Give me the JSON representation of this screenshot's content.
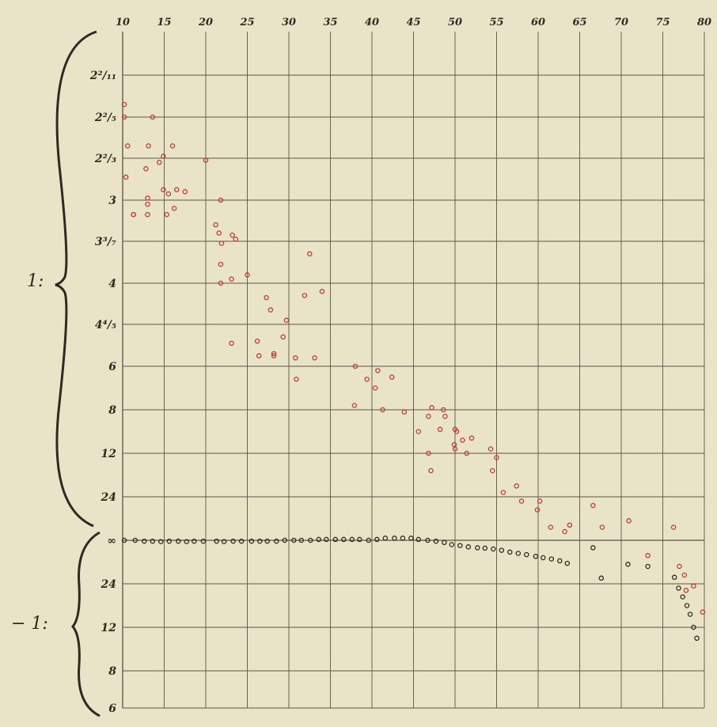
{
  "chart_data": {
    "type": "scatter",
    "title": "",
    "x_ticks": [
      "10",
      "15",
      "20",
      "25",
      "30",
      "35",
      "40",
      "45",
      "50",
      "55",
      "60",
      "65",
      "70",
      "75",
      "80"
    ],
    "x_tick_values": [
      10,
      15,
      20,
      25,
      30,
      35,
      40,
      45,
      50,
      55,
      60,
      65,
      70,
      75,
      80
    ],
    "xlim": [
      10,
      80
    ],
    "y_ticks_upper": [
      "2²/₁₁",
      "2²/₅",
      "2²/₃",
      "3",
      "3³/₇",
      "4",
      "4⁴/₅",
      "6",
      "8",
      "12",
      "24",
      "∞"
    ],
    "y_ticks_lower": [
      "24",
      "12",
      "8",
      "6"
    ],
    "y_axis_note": "ordinal rows; row 0 = 2²/₁₁ … row 11 = ∞ … row 15 = 6",
    "group_labels": [
      "1:",
      "− 1:"
    ],
    "grid": true,
    "series": [
      {
        "color": "#c43a32",
        "x": [
          10.2,
          10.2,
          10.6,
          10.4,
          11.3,
          11.3,
          13.1,
          13.6,
          12.8,
          13.0,
          14.4,
          14.9,
          16.0,
          15.5,
          14.9,
          13.0,
          13.0,
          16.5,
          17.5,
          15.3,
          16.2,
          20.0,
          21.8,
          21.2,
          21.6,
          21.9,
          23.2,
          23.6,
          21.8,
          23.1,
          25.0,
          21.8,
          23.1,
          32.5,
          31.9,
          34.0,
          27.3,
          27.8,
          29.7,
          29.3,
          26.2,
          28.2,
          33.1,
          26.4,
          28.2,
          30.8,
          30.9,
          38.0,
          39.4,
          40.7,
          42.4,
          40.4,
          41.3,
          37.9,
          43.9,
          47.2,
          46.8,
          48.8,
          48.6,
          50.0,
          48.2,
          50.2,
          46.8,
          50.9,
          49.9,
          52.0,
          47.1,
          50.0,
          51.4,
          54.3,
          55.0,
          45.6,
          54.5,
          55.8,
          57.4,
          58.0,
          60.2,
          59.9,
          61.5,
          63.2,
          63.8,
          66.6,
          67.7,
          70.9,
          73.2,
          76.3,
          77.0,
          77.6,
          77.8,
          78.7,
          79.8
        ],
        "y": [
          0.7,
          1.0,
          1.7,
          2.45,
          3.35,
          3.35,
          1.7,
          1.0,
          2.25,
          2.95,
          2.1,
          1.95,
          1.7,
          2.85,
          2.75,
          3.35,
          3.1,
          2.75,
          2.8,
          3.35,
          3.2,
          2.05,
          3.0,
          3.6,
          3.8,
          4.05,
          3.85,
          3.95,
          4.55,
          4.9,
          4.8,
          5.0,
          6.45,
          4.3,
          5.3,
          5.2,
          5.35,
          5.65,
          5.9,
          6.3,
          6.4,
          6.7,
          6.8,
          6.75,
          6.75,
          6.8,
          7.3,
          7.0,
          7.3,
          7.1,
          7.25,
          7.5,
          8.0,
          7.9,
          8.05,
          7.95,
          8.15,
          8.15,
          8.0,
          8.45,
          8.45,
          8.5,
          9.0,
          8.7,
          8.8,
          8.65,
          9.4,
          8.9,
          9.0,
          8.9,
          9.1,
          8.5,
          9.4,
          9.9,
          9.75,
          10.1,
          10.1,
          10.3,
          10.7,
          10.8,
          10.65,
          10.2,
          10.7,
          10.55,
          11.35,
          10.7,
          11.6,
          11.8,
          12.15,
          12.05,
          12.65
        ]
      },
      {
        "color": "#2e2a22",
        "x": [
          10.2,
          11.5,
          12.6,
          13.6,
          14.6,
          15.6,
          16.7,
          17.7,
          18.6,
          19.7,
          21.3,
          22.2,
          23.3,
          24.3,
          25.5,
          26.5,
          27.4,
          28.5,
          29.5,
          30.6,
          31.5,
          32.6,
          33.6,
          34.5,
          35.6,
          36.6,
          37.6,
          38.5,
          39.6,
          40.6,
          41.6,
          42.7,
          43.7,
          44.7,
          45.6,
          46.7,
          47.7,
          48.7,
          49.6,
          50.6,
          51.6,
          52.7,
          53.6,
          54.6,
          55.6,
          56.6,
          57.6,
          58.6,
          59.7,
          60.6,
          61.6,
          62.6,
          63.5,
          66.6,
          67.6,
          70.8,
          73.2,
          76.4,
          76.9,
          77.4,
          77.9,
          78.3,
          78.7,
          79.1
        ],
        "y": [
          11.0,
          11.0,
          11.02,
          11.02,
          11.03,
          11.02,
          11.02,
          11.03,
          11.02,
          11.02,
          11.02,
          11.03,
          11.02,
          11.02,
          11.02,
          11.02,
          11.02,
          11.02,
          11.0,
          11.0,
          11.0,
          11.0,
          10.98,
          10.98,
          10.98,
          10.98,
          10.98,
          10.98,
          11.0,
          10.98,
          10.95,
          10.95,
          10.95,
          10.95,
          10.98,
          11.0,
          11.02,
          11.05,
          11.1,
          11.12,
          11.15,
          11.17,
          11.18,
          11.2,
          11.23,
          11.27,
          11.3,
          11.33,
          11.37,
          11.4,
          11.43,
          11.47,
          11.53,
          11.17,
          11.87,
          11.55,
          11.6,
          11.85,
          12.1,
          12.3,
          12.5,
          12.7,
          13.0,
          13.25
        ]
      }
    ]
  }
}
